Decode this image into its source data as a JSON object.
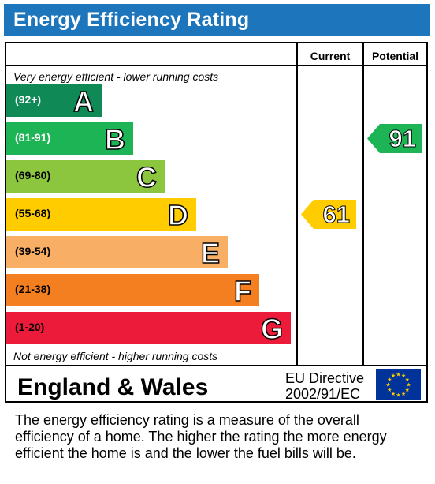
{
  "header": {
    "title": "Energy Efficiency Rating"
  },
  "columns": {
    "current": "Current",
    "potential": "Potential"
  },
  "notes": {
    "top": "Very energy efficient - lower running costs",
    "bottom": "Not energy efficient - higher running costs"
  },
  "footer": {
    "region": "England & Wales",
    "directive_line1": "EU Directive",
    "directive_line2": "2002/91/EC"
  },
  "description": [
    "The energy efficiency rating is a measure of the overall",
    "efficiency of a home.  The higher the rating the more energy",
    "efficient the home is and the lower the fuel bills will be."
  ],
  "chart_data": {
    "type": "bar",
    "categories": [
      "A",
      "B",
      "C",
      "D",
      "E",
      "F",
      "G"
    ],
    "bands": [
      {
        "letter": "A",
        "range": "(92+)",
        "color": "#0f8a56",
        "text_color": "#ffffff"
      },
      {
        "letter": "B",
        "range": "(81-91)",
        "color": "#1db456",
        "text_color": "#ffffff"
      },
      {
        "letter": "C",
        "range": "(69-80)",
        "color": "#8cc63f",
        "text_color": "#000000"
      },
      {
        "letter": "D",
        "range": "(55-68)",
        "color": "#ffcc00",
        "text_color": "#000000"
      },
      {
        "letter": "E",
        "range": "(39-54)",
        "color": "#f9ae66",
        "text_color": "#000000"
      },
      {
        "letter": "F",
        "range": "(21-38)",
        "color": "#f47f20",
        "text_color": "#000000"
      },
      {
        "letter": "G",
        "range": "(1-20)",
        "color": "#ed1b3a",
        "text_color": "#000000"
      }
    ],
    "current": {
      "value": 61,
      "band": "D",
      "color": "#ffcc00"
    },
    "potential": {
      "value": 91,
      "band": "B",
      "color": "#1db456"
    }
  }
}
